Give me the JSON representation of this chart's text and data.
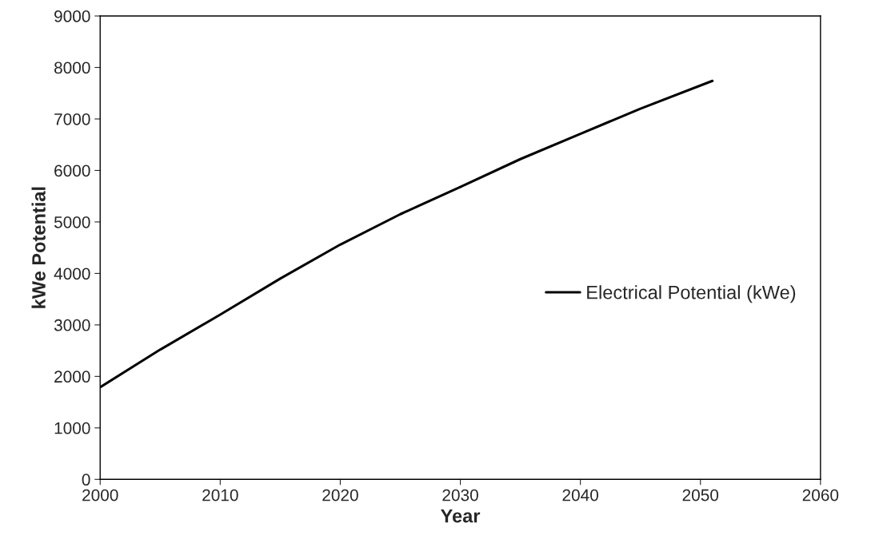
{
  "chart_data": {
    "type": "line",
    "xlabel": "Year",
    "ylabel": "kWe Potential",
    "x": [
      2000,
      2005,
      2010,
      2015,
      2020,
      2025,
      2030,
      2035,
      2040,
      2045,
      2051
    ],
    "series": [
      {
        "name": "Electrical Potential (kWe)",
        "color": "#000000",
        "values": [
          1790,
          2520,
          3200,
          3900,
          4560,
          5150,
          5680,
          6220,
          6710,
          7200,
          7740
        ]
      }
    ],
    "xlim": [
      2000,
      2060
    ],
    "xticks": [
      2000,
      2010,
      2020,
      2030,
      2040,
      2050,
      2060
    ],
    "ylim": [
      0,
      9000
    ],
    "yticks": [
      0,
      1000,
      2000,
      3000,
      4000,
      5000,
      6000,
      7000,
      8000,
      9000
    ],
    "grid": false,
    "legend": "center right",
    "line_style": "solid"
  }
}
